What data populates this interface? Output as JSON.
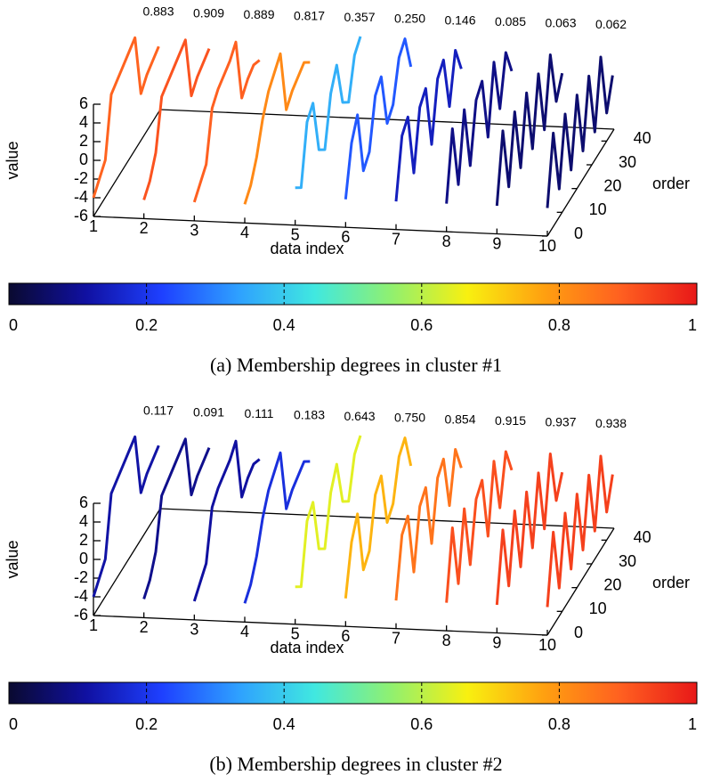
{
  "chart_data": [
    {
      "type": "line3d",
      "title": "(a) Membership degrees in cluster #1",
      "xlabel": "data index",
      "ylabel": "order",
      "zlabel": "value",
      "xlim": [
        1,
        10
      ],
      "xticks": [
        1,
        2,
        3,
        4,
        5,
        6,
        7,
        8,
        9,
        10
      ],
      "ylim": [
        0,
        45
      ],
      "yticks": [
        0,
        10,
        20,
        30,
        40
      ],
      "zlim": [
        -6,
        6
      ],
      "zticks": [
        -6,
        -4,
        -2,
        0,
        2,
        4,
        6
      ],
      "order": [
        0,
        4,
        8,
        12,
        16,
        20,
        24,
        28,
        32,
        36,
        40,
        44
      ],
      "series": [
        {
          "index": 1,
          "membership": 0.883,
          "membership_label": "0.883",
          "values": [
            -4,
            -3,
            -2,
            4,
            4.5,
            5,
            5.5,
            6,
            -1,
            0,
            0.5,
            1
          ]
        },
        {
          "index": 2,
          "membership": 0.909,
          "membership_label": "0.909",
          "values": [
            -4,
            -3,
            -1,
            4,
            4.5,
            5,
            5.5,
            6,
            -1,
            0,
            0.5,
            1
          ]
        },
        {
          "index": 3,
          "membership": 0.889,
          "membership_label": "0.889",
          "values": [
            -4,
            -3,
            -2,
            3,
            4,
            4.5,
            5,
            6,
            -1,
            0,
            0.5,
            0
          ]
        },
        {
          "index": 4,
          "membership": 0.817,
          "membership_label": "0.817",
          "values": [
            -4,
            -3,
            -1,
            2,
            4,
            5,
            6,
            -1,
            0,
            0.5,
            1,
            0
          ]
        },
        {
          "index": 5,
          "membership": 0.357,
          "membership_label": "0.357",
          "values": [
            -2,
            -3,
            3,
            4,
            -2,
            -3,
            2,
            4,
            -1,
            -2,
            2,
            3
          ]
        },
        {
          "index": 6,
          "membership": 0.25,
          "membership_label": "0.250",
          "values": [
            -3,
            2,
            4,
            -3,
            -2,
            3,
            4,
            -2,
            -1,
            3,
            4,
            0
          ]
        },
        {
          "index": 7,
          "membership": 0.146,
          "membership_label": "0.146",
          "values": [
            -3,
            3,
            4,
            -3,
            3,
            4,
            -3,
            3,
            4,
            -2,
            3,
            0
          ]
        },
        {
          "index": 8,
          "membership": 0.085,
          "membership_label": "0.085",
          "values": [
            -3,
            4,
            -3,
            4,
            -3,
            3,
            4,
            -3,
            4,
            -2,
            3,
            0
          ]
        },
        {
          "index": 9,
          "membership": 0.063,
          "membership_label": "0.063",
          "values": [
            -3,
            4,
            -3,
            4,
            -3,
            4,
            -3,
            4,
            -3,
            4,
            -2,
            0
          ]
        },
        {
          "index": 10,
          "membership": 0.062,
          "membership_label": "0.062",
          "values": [
            -3,
            4,
            -3,
            4,
            -3,
            4,
            -3,
            4,
            -3,
            4,
            -3,
            0
          ]
        }
      ],
      "colorbar": {
        "lim": [
          0,
          1
        ],
        "ticks": [
          0,
          0.2,
          0.4,
          0.6,
          0.8,
          1
        ],
        "colors": [
          "#0a0a30",
          "#1010a0",
          "#1e40ff",
          "#2ea0ff",
          "#40e8e0",
          "#90f070",
          "#f8f010",
          "#ffa010",
          "#ff6020",
          "#e81818"
        ]
      }
    },
    {
      "type": "line3d",
      "title": "(b) Membership degrees in cluster #2",
      "xlabel": "data index",
      "ylabel": "order",
      "zlabel": "value",
      "xlim": [
        1,
        10
      ],
      "xticks": [
        1,
        2,
        3,
        4,
        5,
        6,
        7,
        8,
        9,
        10
      ],
      "ylim": [
        0,
        45
      ],
      "yticks": [
        0,
        10,
        20,
        30,
        40
      ],
      "zlim": [
        -6,
        6
      ],
      "zticks": [
        -6,
        -4,
        -2,
        0,
        2,
        4,
        6
      ],
      "order": [
        0,
        4,
        8,
        12,
        16,
        20,
        24,
        28,
        32,
        36,
        40,
        44
      ],
      "series": [
        {
          "index": 1,
          "membership": 0.117,
          "membership_label": "0.117",
          "values": [
            -4,
            -3,
            -2,
            4,
            4.5,
            5,
            5.5,
            6,
            -1,
            0,
            0.5,
            1
          ]
        },
        {
          "index": 2,
          "membership": 0.091,
          "membership_label": "0.091",
          "values": [
            -4,
            -3,
            -1,
            4,
            4.5,
            5,
            5.5,
            6,
            -1,
            0,
            0.5,
            1
          ]
        },
        {
          "index": 3,
          "membership": 0.111,
          "membership_label": "0.111",
          "values": [
            -4,
            -3,
            -2,
            3,
            4,
            4.5,
            5,
            6,
            -1,
            0,
            0.5,
            0
          ]
        },
        {
          "index": 4,
          "membership": 0.183,
          "membership_label": "0.183",
          "values": [
            -4,
            -3,
            -1,
            2,
            4,
            5,
            6,
            -1,
            0,
            0.5,
            1,
            0
          ]
        },
        {
          "index": 5,
          "membership": 0.643,
          "membership_label": "0.643",
          "values": [
            -2,
            -3,
            3,
            4,
            -2,
            -3,
            2,
            4,
            -1,
            -2,
            2,
            3
          ]
        },
        {
          "index": 6,
          "membership": 0.75,
          "membership_label": "0.750",
          "values": [
            -3,
            2,
            4,
            -3,
            -2,
            3,
            4,
            -2,
            -1,
            3,
            4,
            0
          ]
        },
        {
          "index": 7,
          "membership": 0.854,
          "membership_label": "0.854",
          "values": [
            -3,
            3,
            4,
            -3,
            3,
            4,
            -3,
            3,
            4,
            -2,
            3,
            0
          ]
        },
        {
          "index": 8,
          "membership": 0.915,
          "membership_label": "0.915",
          "values": [
            -3,
            4,
            -3,
            4,
            -3,
            3,
            4,
            -3,
            4,
            -2,
            3,
            0
          ]
        },
        {
          "index": 9,
          "membership": 0.937,
          "membership_label": "0.937",
          "values": [
            -3,
            4,
            -3,
            4,
            -3,
            4,
            -3,
            4,
            -3,
            4,
            -2,
            0
          ]
        },
        {
          "index": 10,
          "membership": 0.938,
          "membership_label": "0.938",
          "values": [
            -3,
            4,
            -3,
            4,
            -3,
            4,
            -3,
            4,
            -3,
            4,
            -3,
            0
          ]
        }
      ],
      "colorbar": {
        "lim": [
          0,
          1
        ],
        "ticks": [
          0,
          0.2,
          0.4,
          0.6,
          0.8,
          1
        ],
        "colors": [
          "#0a0a30",
          "#1010a0",
          "#1e40ff",
          "#2ea0ff",
          "#40e8e0",
          "#90f070",
          "#f8f010",
          "#ffa010",
          "#ff6020",
          "#e81818"
        ]
      }
    }
  ]
}
